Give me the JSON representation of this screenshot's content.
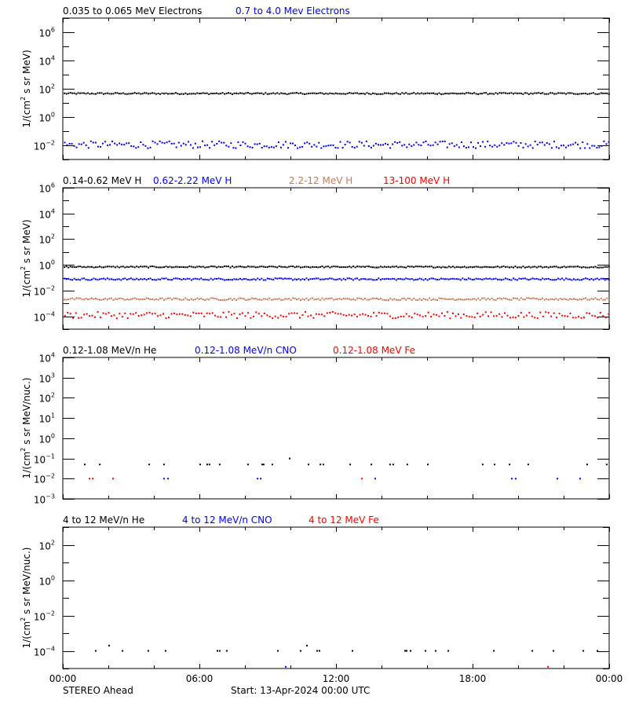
{
  "figure": {
    "spacecraft_label": "STEREO Ahead",
    "start_label": "Start: 13-Apr-2024 00:00 UTC",
    "x_tick_labels": [
      "00:00",
      "06:00",
      "12:00",
      "18:00",
      "00:00"
    ],
    "colors": {
      "black": "#000000",
      "blue": "#0000ff",
      "brown": "#c87a5c",
      "red": "#ff0000"
    }
  },
  "chart_data": [
    {
      "type": "scatter",
      "title": "Electrons",
      "ylabel": "1/(cm² s sr MeV)",
      "ylabel_parts": {
        "pre": "1/(cm",
        "sup": "2",
        "post": " s sr MeV)"
      },
      "yscale": "log",
      "ylim_exp": [
        -3,
        7
      ],
      "ytick_exps": [
        -2,
        0,
        2,
        4,
        6
      ],
      "xlabel": "",
      "x_range_hours": [
        0,
        24
      ],
      "x_tick_labels": [
        "00:00",
        "06:00",
        "12:00",
        "18:00",
        "00:00"
      ],
      "legend": [
        {
          "label": "0.035 to 0.065 MeV Electrons",
          "color": "#000000"
        },
        {
          "label": "0.7 to 4.0 Mev Electrons",
          "color": "#0000ff"
        }
      ],
      "series": [
        {
          "name": "0.035 to 0.065 MeV Electrons",
          "color": "#000000",
          "kind": "dense",
          "log10_mean": 1.72,
          "log10_jitter": 0.05,
          "points": 280,
          "dot": 2
        },
        {
          "name": "0.7 to 4.0 Mev Electrons",
          "color": "#0000ff",
          "kind": "dense",
          "log10_mean": -1.9,
          "log10_jitter": 0.25,
          "points": 230,
          "dot": 2
        }
      ]
    },
    {
      "type": "scatter",
      "title": "Protons",
      "ylabel": "1/(cm² s sr MeV)",
      "ylabel_parts": {
        "pre": "1/(cm",
        "sup": "2",
        "post": " s sr MeV)"
      },
      "yscale": "log",
      "ylim_exp": [
        -5,
        6
      ],
      "ytick_exps": [
        -4,
        -2,
        0,
        2,
        4,
        6
      ],
      "x_range_hours": [
        0,
        24
      ],
      "x_tick_labels": [
        "00:00",
        "06:00",
        "12:00",
        "18:00",
        "00:00"
      ],
      "legend": [
        {
          "label": "0.14-0.62 MeV H",
          "color": "#000000"
        },
        {
          "label": "0.62-2.22 MeV H",
          "color": "#0000ff"
        },
        {
          "label": "2.2-12 MeV H",
          "color": "#c87a5c"
        },
        {
          "label": "13-100 MeV H",
          "color": "#ff0000"
        }
      ],
      "series": [
        {
          "name": "0.14-0.62 MeV H",
          "color": "#000000",
          "kind": "dense",
          "log10_mean": -0.1,
          "log10_jitter": 0.05,
          "points": 280,
          "dot": 2
        },
        {
          "name": "0.62-2.22 MeV H",
          "color": "#0000ff",
          "kind": "dense",
          "log10_mean": -1.05,
          "log10_jitter": 0.07,
          "points": 280,
          "dot": 2
        },
        {
          "name": "2.2-12 MeV H",
          "color": "#c87a5c",
          "kind": "dense",
          "log10_mean": -2.6,
          "log10_jitter": 0.08,
          "points": 280,
          "dot": 2
        },
        {
          "name": "13-100 MeV H",
          "color": "#ff0000",
          "kind": "dense",
          "log10_mean": -3.85,
          "log10_jitter": 0.25,
          "points": 200,
          "dot": 2
        }
      ]
    },
    {
      "type": "scatter",
      "title": "Low-energy heavy ions",
      "ylabel": "1/(cm² s sr MeV/nuc.)",
      "ylabel_parts": {
        "pre": "1/(cm",
        "sup": "2",
        "post": " s sr MeV/nuc.)"
      },
      "yscale": "log",
      "ylim_exp": [
        -3,
        4
      ],
      "ytick_exps": [
        -3,
        -2,
        -1,
        0,
        1,
        2,
        3,
        4
      ],
      "x_range_hours": [
        0,
        24
      ],
      "x_tick_labels": [
        "00:00",
        "06:00",
        "12:00",
        "18:00",
        "00:00"
      ],
      "legend": [
        {
          "label": "0.12-1.08 MeV/n He",
          "color": "#000000"
        },
        {
          "label": "0.12-1.08 MeV/n CNO",
          "color": "#0000ff"
        },
        {
          "label": "0.12-1.08 MeV Fe",
          "color": "#ff0000"
        }
      ],
      "series": [
        {
          "name": "0.12-1.08 MeV/n He",
          "color": "#000000",
          "kind": "sparse",
          "dot": 2,
          "x_hours": [
            0.93,
            1.59,
            3.76,
            4.41,
            6.0,
            6.31,
            6.41,
            6.86,
            8.1,
            8.72,
            8.79,
            9.17,
            9.93,
            10.76,
            11.28,
            11.41,
            12.59,
            13.52,
            14.34,
            14.48,
            15.1,
            16.0,
            18.41,
            18.93,
            19.59,
            20.41,
            23.0,
            23.86
          ],
          "y_log10": [
            -1.3,
            -1.3,
            -1.3,
            -1.3,
            -1.3,
            -1.3,
            -1.3,
            -1.3,
            -1.3,
            -1.3,
            -1.3,
            -1.3,
            -1.0,
            -1.3,
            -1.3,
            -1.3,
            -1.3,
            -1.3,
            -1.3,
            -1.3,
            -1.3,
            -1.3,
            -1.3,
            -1.3,
            -1.3,
            -1.3,
            -1.3,
            -1.3
          ]
        },
        {
          "name": "0.12-1.08 MeV/n CNO",
          "color": "#0000ff",
          "kind": "sparse",
          "dot": 2,
          "x_hours": [
            4.41,
            4.59,
            8.52,
            8.66,
            13.69,
            19.69,
            19.86,
            21.69,
            22.69
          ],
          "y_log10": [
            -2,
            -2,
            -2,
            -2,
            -2,
            -2,
            -2,
            -2,
            -2
          ]
        },
        {
          "name": "0.12-1.08 MeV Fe",
          "color": "#ff0000",
          "kind": "sparse",
          "dot": 2,
          "x_hours": [
            1.14,
            1.28,
            2.17,
            13.1
          ],
          "y_log10": [
            -2,
            -2,
            -2,
            -2
          ]
        }
      ]
    },
    {
      "type": "scatter",
      "title": "High-energy heavy ions",
      "ylabel": "1/(cm² s sr MeV/nuc.)",
      "ylabel_parts": {
        "pre": "1/(cm",
        "sup": "2",
        "post": " s sr MeV/nuc.)"
      },
      "yscale": "log",
      "ylim_exp": [
        -5,
        3
      ],
      "ytick_exps": [
        -4,
        -2,
        0,
        2
      ],
      "x_range_hours": [
        0,
        24
      ],
      "x_tick_labels": [
        "00:00",
        "06:00",
        "12:00",
        "18:00",
        "00:00"
      ],
      "legend": [
        {
          "label": "4 to 12 MeV/n He",
          "color": "#000000"
        },
        {
          "label": "4 to 12 MeV/n CNO",
          "color": "#0000ff"
        },
        {
          "label": "4 to 12 MeV Fe",
          "color": "#ff0000"
        }
      ],
      "series": [
        {
          "name": "4 to 12 MeV/n He",
          "color": "#000000",
          "kind": "sparse",
          "dot": 2,
          "x_hours": [
            1.41,
            2.0,
            2.59,
            3.72,
            4.48,
            6.76,
            6.86,
            7.17,
            9.41,
            10.41,
            10.69,
            11.14,
            11.24,
            12.69,
            15.0,
            15.07,
            15.24,
            15.9,
            16.34,
            16.9,
            18.9,
            20.59,
            21.52,
            22.83,
            23.45
          ],
          "y_log10": [
            -4,
            -3.7,
            -4,
            -4,
            -4,
            -4,
            -4,
            -4,
            -4,
            -4,
            -3.7,
            -4,
            -4,
            -4,
            -4,
            -4,
            -4,
            -4,
            -4,
            -4,
            -4,
            -4,
            -4,
            -4,
            -4
          ]
        },
        {
          "name": "4 to 12 MeV/n CNO",
          "color": "#0000ff",
          "kind": "sparse",
          "dot": 2,
          "x_hours": [
            9.76
          ],
          "y_log10": [
            -4.9
          ]
        },
        {
          "name": "4 to 12 MeV Fe",
          "color": "#ff0000",
          "kind": "sparse",
          "dot": 2,
          "x_hours": [
            21.28
          ],
          "y_log10": [
            -4.9
          ]
        }
      ]
    }
  ]
}
